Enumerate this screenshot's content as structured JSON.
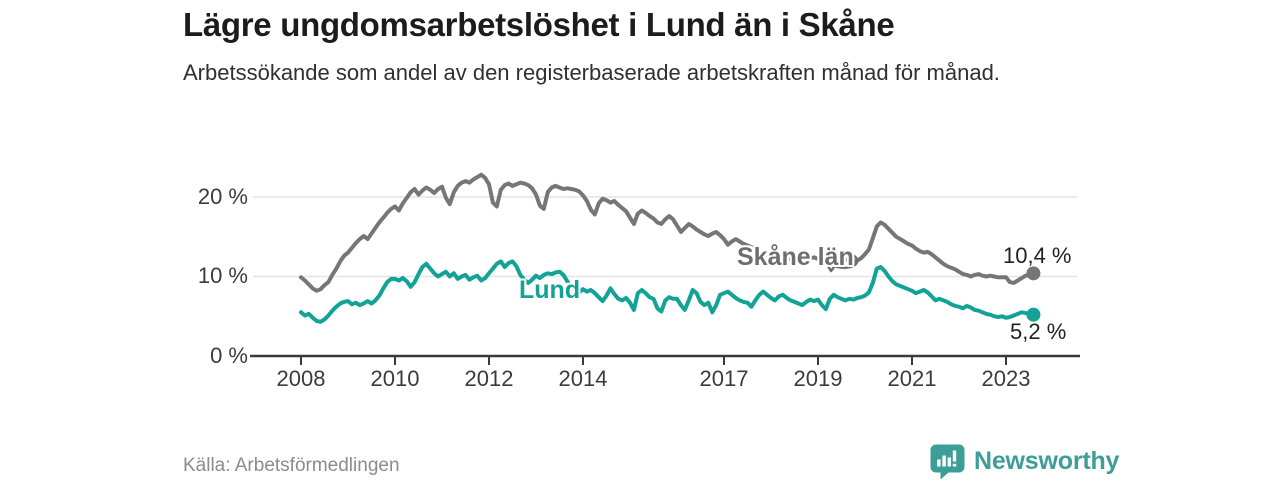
{
  "header": {
    "title": "Lägre ungdomsarbetslöshet i Lund än i Skåne",
    "subtitle": "Arbetssökande som andel av den registerbaserade arbetskraften månad för månad."
  },
  "footer": {
    "source": "Källa: Arbetsförmedlingen",
    "brand_name": "Newsworthy",
    "brand_icon": "bar-chart-speech-bubble-icon"
  },
  "colors": {
    "skane_line": "#767676",
    "lund_line": "#12a296",
    "grid": "#e4e4e4",
    "axis": "#3a3a3a",
    "end_label_text": "#222222",
    "brand_teal": "#3d9d99"
  },
  "chart_data": {
    "type": "line",
    "title": "Lägre ungdomsarbetslöshet i Lund än i Skåne",
    "subtitle": "Arbetssökande som andel av den registerbaserade arbetskraften månad för månad.",
    "unit": "%",
    "x_start_year": 2008,
    "points_per_year": 12,
    "x_tick_years": [
      2008,
      2010,
      2012,
      2014,
      2017,
      2019,
      2021,
      2023
    ],
    "x_tick_labels": [
      "2008",
      "2010",
      "2012",
      "2014",
      "2017",
      "2019",
      "2021",
      "2023"
    ],
    "y_tick_labels": [
      "20 %",
      "10 %",
      "0 %"
    ],
    "y_gridline_values": [
      10,
      20
    ],
    "ylim": [
      0,
      24
    ],
    "grid": "horizontal",
    "legend_position": "inline-annotations",
    "series": [
      {
        "name": "Skåne län",
        "color": "#767676",
        "end_label": "10,4 %",
        "end_value": 10.4,
        "values": [
          9.9,
          9.5,
          9.0,
          8.5,
          8.2,
          8.4,
          8.9,
          9.3,
          10.2,
          11.0,
          11.9,
          12.6,
          13.0,
          13.6,
          14.2,
          14.7,
          15.1,
          14.7,
          15.4,
          16.1,
          16.8,
          17.4,
          18.0,
          18.5,
          18.8,
          18.3,
          19.2,
          19.9,
          20.6,
          21.0,
          20.3,
          20.8,
          21.2,
          20.9,
          20.5,
          21.0,
          21.3,
          19.9,
          19.1,
          20.6,
          21.4,
          21.8,
          22.0,
          21.8,
          22.2,
          22.5,
          22.8,
          22.4,
          21.6,
          19.3,
          18.8,
          20.9,
          21.5,
          21.7,
          21.4,
          21.6,
          21.8,
          21.7,
          21.5,
          21.1,
          20.3,
          18.9,
          18.5,
          20.6,
          21.2,
          21.4,
          21.2,
          21.0,
          21.1,
          21.0,
          20.9,
          20.7,
          20.2,
          19.5,
          18.4,
          17.8,
          19.2,
          19.8,
          19.6,
          19.3,
          19.5,
          19.0,
          18.6,
          18.2,
          17.4,
          16.6,
          17.9,
          18.3,
          18.0,
          17.6,
          17.3,
          16.8,
          16.6,
          17.2,
          17.6,
          17.2,
          16.4,
          15.6,
          16.1,
          16.6,
          16.3,
          15.9,
          15.6,
          15.3,
          15.1,
          15.4,
          15.6,
          15.2,
          14.7,
          14.0,
          14.4,
          14.7,
          14.4,
          14.1,
          13.9,
          13.7,
          13.4,
          13.1,
          12.9,
          12.7,
          12.4,
          12.2,
          12.5,
          12.6,
          12.4,
          12.2,
          12.4,
          12.5,
          12.3,
          12.2,
          12.3,
          12.4,
          12.2,
          12.0,
          12.2,
          12.3,
          12.1,
          11.9,
          12.1,
          12.2,
          12.0,
          11.9,
          12.0,
          12.3,
          12.8,
          13.4,
          14.8,
          16.3,
          16.8,
          16.5,
          16.0,
          15.5,
          15.0,
          14.7,
          14.4,
          14.1,
          13.9,
          13.5,
          13.2,
          13.0,
          13.1,
          12.8,
          12.4,
          12.0,
          11.6,
          11.3,
          11.1,
          10.9,
          10.6,
          10.3,
          10.2,
          10.0,
          10.2,
          10.3,
          10.1,
          10.0,
          10.1,
          10.0,
          9.9,
          9.9,
          9.9,
          9.3,
          9.2,
          9.5,
          9.8,
          10.1,
          10.2,
          10.4
        ]
      },
      {
        "name": "Lund",
        "color": "#12a296",
        "end_label": "5,2 %",
        "end_value": 5.2,
        "values": [
          5.5,
          5.1,
          5.3,
          4.8,
          4.4,
          4.3,
          4.6,
          5.1,
          5.7,
          6.2,
          6.6,
          6.8,
          6.9,
          6.5,
          6.7,
          6.4,
          6.6,
          6.9,
          6.6,
          7.0,
          7.6,
          8.5,
          9.3,
          9.7,
          9.7,
          9.5,
          9.8,
          9.4,
          8.7,
          9.3,
          10.3,
          11.2,
          11.6,
          11.0,
          10.4,
          10.0,
          10.3,
          10.6,
          10.0,
          10.4,
          9.7,
          10.0,
          10.2,
          9.6,
          9.9,
          10.1,
          9.5,
          9.8,
          10.4,
          11.0,
          11.6,
          11.9,
          11.2,
          11.7,
          11.9,
          11.3,
          10.2,
          9.6,
          9.2,
          9.6,
          10.1,
          9.8,
          10.2,
          10.4,
          10.3,
          10.5,
          10.6,
          10.2,
          9.4,
          8.7,
          8.2,
          8.0,
          8.4,
          8.1,
          8.3,
          7.9,
          7.4,
          6.9,
          7.6,
          8.5,
          7.8,
          7.2,
          7.0,
          7.3,
          6.7,
          5.8,
          7.9,
          8.3,
          7.9,
          7.4,
          7.2,
          6.0,
          5.6,
          7.0,
          7.4,
          7.2,
          7.2,
          6.4,
          5.8,
          7.0,
          8.3,
          7.9,
          6.8,
          6.4,
          6.7,
          5.5,
          6.4,
          7.7,
          7.9,
          8.1,
          7.7,
          7.3,
          7.0,
          6.8,
          6.7,
          6.2,
          7.0,
          7.7,
          8.1,
          7.7,
          7.3,
          7.0,
          7.5,
          7.7,
          7.3,
          7.0,
          6.8,
          6.6,
          6.4,
          6.8,
          7.1,
          6.9,
          7.1,
          6.4,
          5.9,
          7.2,
          7.7,
          7.4,
          7.2,
          7.0,
          7.2,
          7.1,
          7.3,
          7.4,
          7.6,
          8.0,
          9.2,
          11.0,
          11.2,
          10.7,
          10.0,
          9.4,
          9.0,
          8.8,
          8.6,
          8.4,
          8.2,
          7.9,
          8.1,
          8.3,
          8.0,
          7.5,
          7.0,
          7.2,
          7.0,
          6.8,
          6.5,
          6.3,
          6.2,
          6.0,
          6.3,
          6.1,
          5.8,
          5.7,
          5.5,
          5.3,
          5.2,
          5.0,
          4.9,
          5.0,
          4.8,
          4.9,
          5.1,
          5.3,
          5.5,
          5.4,
          5.3,
          5.2
        ]
      }
    ],
    "annotations": [
      {
        "text": "Skåne län",
        "target_series": "Skåne län",
        "style": "label-with-arrow"
      },
      {
        "text": "Lund",
        "target_series": "Lund",
        "style": "inline-label"
      }
    ]
  }
}
